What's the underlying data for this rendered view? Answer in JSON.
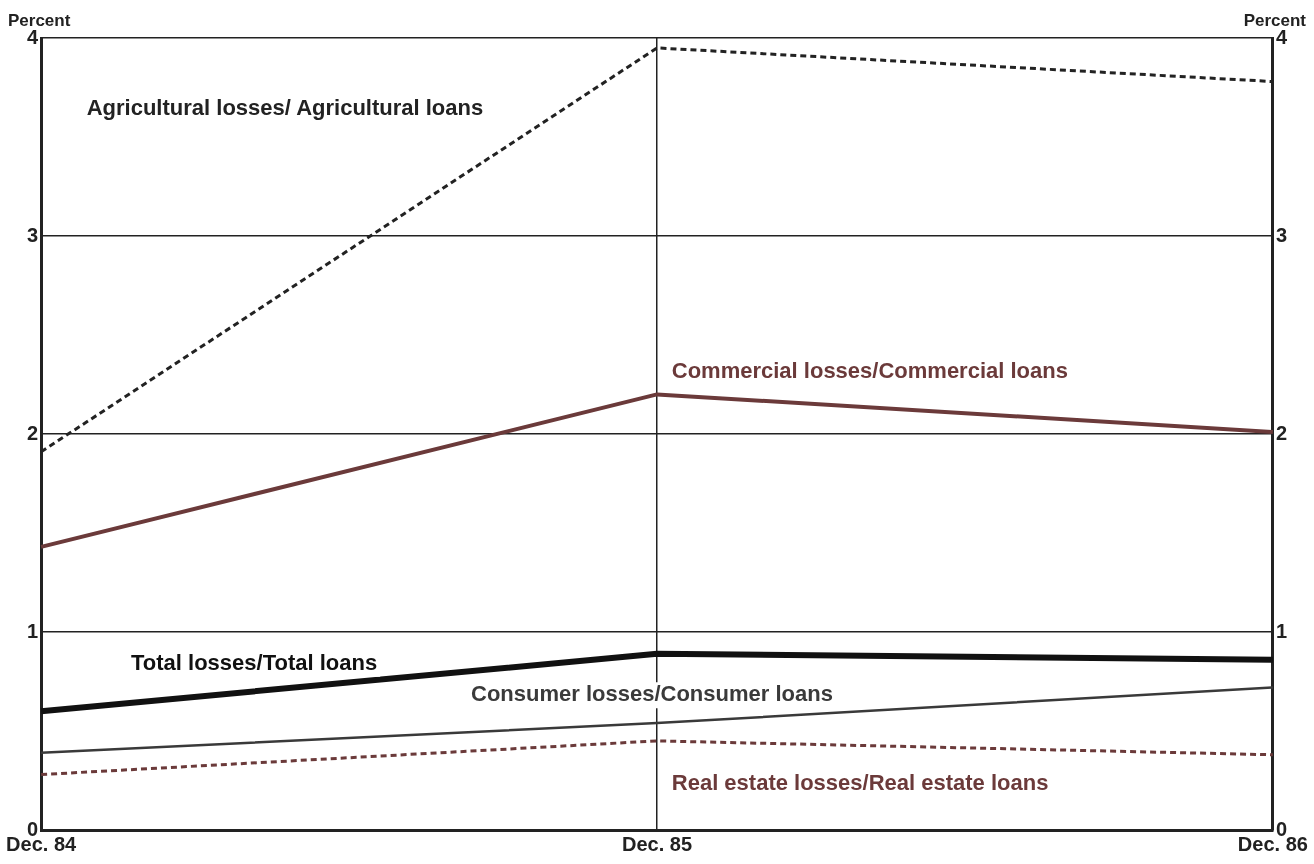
{
  "chart_data": {
    "type": "line",
    "ylabel": "Percent",
    "y2label": "Percent",
    "categories": [
      "Dec. 84",
      "Dec. 85",
      "Dec. 86"
    ],
    "series": [
      {
        "name": "Agricultural losses/ Agricultural loans",
        "color": "#222222",
        "values": [
          1.91,
          3.95,
          3.78
        ],
        "line_style": "dashed"
      },
      {
        "name": "Commercial losses/Commercial loans",
        "color": "#6b3a3a",
        "values": [
          1.43,
          2.2,
          2.01
        ],
        "line_style": "solid"
      },
      {
        "name": "Total losses/Total loans",
        "color": "#111111",
        "values": [
          0.6,
          0.89,
          0.86
        ],
        "line_style": "solid"
      },
      {
        "name": "Consumer losses/Consumer loans",
        "color": "#3a3a3a",
        "values": [
          0.39,
          0.54,
          0.72
        ],
        "line_style": "solid"
      },
      {
        "name": "Real estate losses/Real estate loans",
        "color": "#6b3a3a",
        "values": [
          0.28,
          0.45,
          0.38
        ],
        "line_style": "dashed"
      }
    ],
    "ylim": [
      0,
      4
    ],
    "yticks": [
      0,
      1,
      2,
      3,
      4
    ],
    "y2lim": [
      0,
      4
    ],
    "y2ticks": [
      0,
      1,
      2,
      3,
      4
    ],
    "grid": true,
    "legend": false,
    "marker": "none"
  }
}
